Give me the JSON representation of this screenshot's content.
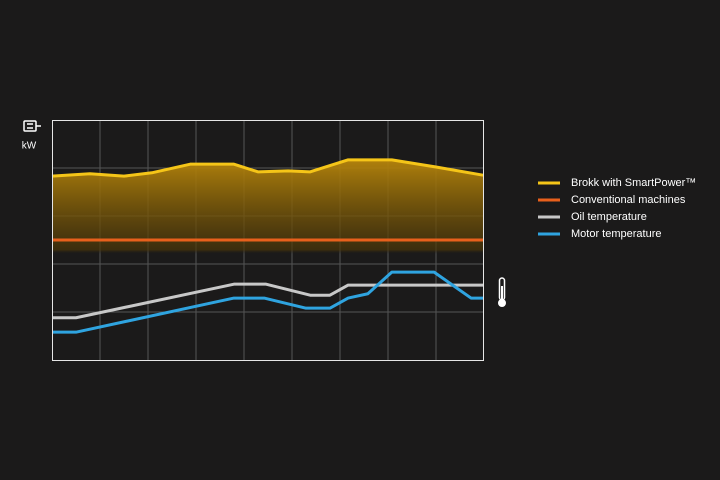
{
  "chart_data": {
    "type": "line",
    "ylabel": "kW",
    "xlim": [
      0,
      9
    ],
    "xticks": [
      1,
      2,
      3,
      4,
      5,
      6,
      7,
      8
    ],
    "ylim": [
      0,
      5
    ],
    "yticks": [
      1,
      2,
      3,
      4
    ],
    "grid": true,
    "legend": "right",
    "series": [
      {
        "name": "Brokk with SmartPower™",
        "color": "#f5c518",
        "area": true,
        "x": [
          0,
          0.79,
          1.5,
          2.08,
          2.88,
          3.79,
          4.29,
          4.92,
          5.38,
          6.17,
          7.08,
          8,
          8.98
        ],
        "values": [
          3.83,
          3.88,
          3.83,
          3.9,
          4.08,
          4.08,
          3.92,
          3.94,
          3.92,
          4.17,
          4.17,
          4.02,
          3.85
        ]
      },
      {
        "name": "Conventional machines",
        "color": "#e8601c",
        "x": [
          0,
          8.98
        ],
        "values": [
          2.5,
          2.5
        ]
      },
      {
        "name": "Oil temperature",
        "color": "#c8c8c8",
        "x": [
          0,
          0.5,
          3.79,
          4.46,
          5.38,
          5.79,
          6.17,
          8.98
        ],
        "values": [
          0.88,
          0.88,
          1.58,
          1.58,
          1.35,
          1.35,
          1.56,
          1.56
        ]
      },
      {
        "name": "Motor temperature",
        "color": "#2fa4e0",
        "x": [
          0,
          0.5,
          3.79,
          4.42,
          5.29,
          5.79,
          6.17,
          6.58,
          7.08,
          7.96,
          8.73,
          8.98
        ],
        "values": [
          0.58,
          0.58,
          1.29,
          1.29,
          1.08,
          1.08,
          1.29,
          1.38,
          1.83,
          1.83,
          1.29,
          1.29
        ]
      }
    ]
  }
}
